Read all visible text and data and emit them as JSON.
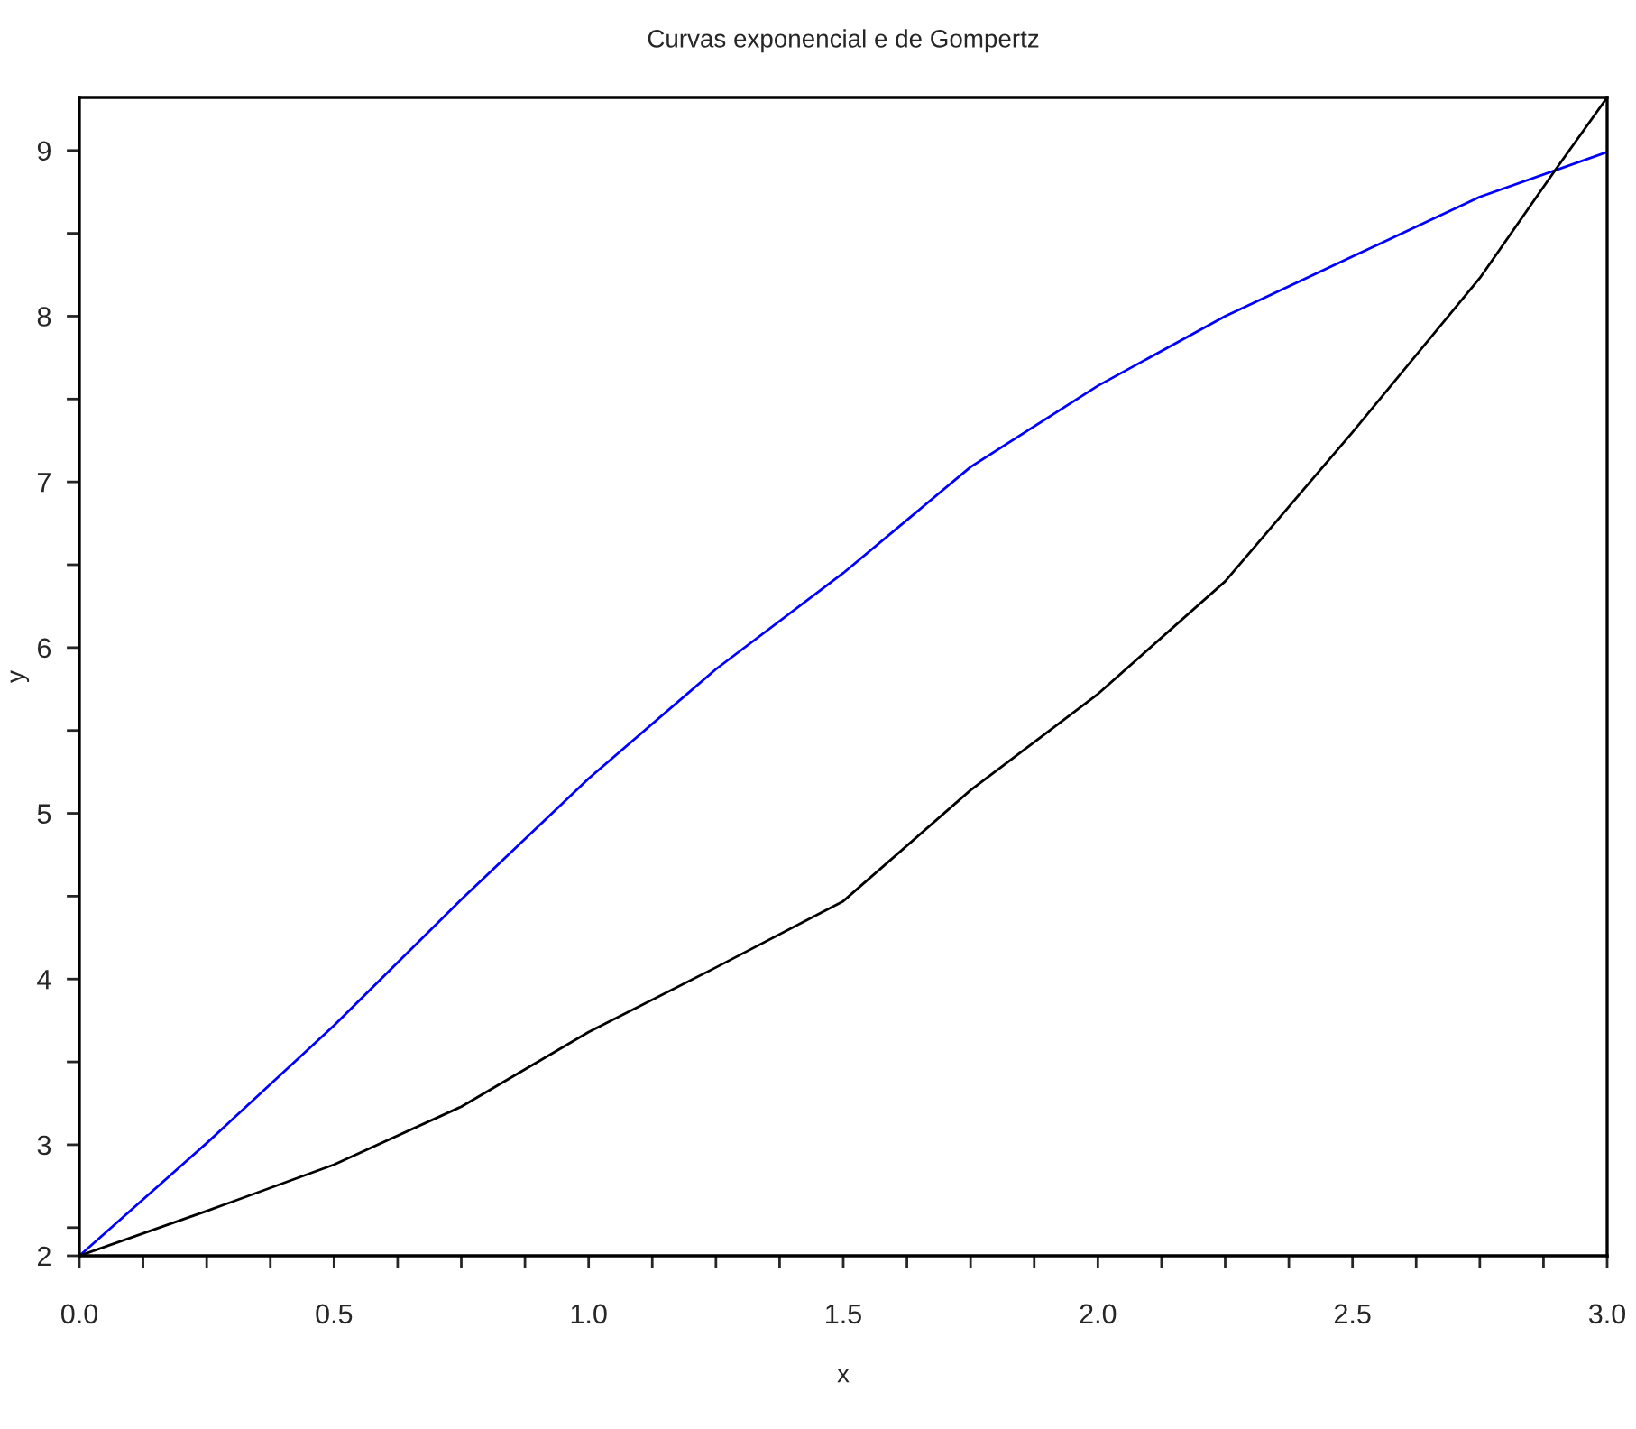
{
  "chart_data": {
    "type": "line",
    "title": "Curvas exponencial e de Gompertz",
    "xlabel": "x",
    "ylabel": "y",
    "xlim": [
      0,
      3
    ],
    "ylim": [
      2.33,
      9.32
    ],
    "xticks": [
      {
        "value": 0,
        "label": "0.0"
      },
      {
        "value": 0.125,
        "label": null
      },
      {
        "value": 0.25,
        "label": null
      },
      {
        "value": 0.375,
        "label": null
      },
      {
        "value": 0.5,
        "label": "0.5"
      },
      {
        "value": 0.625,
        "label": null
      },
      {
        "value": 0.75,
        "label": null
      },
      {
        "value": 0.875,
        "label": null
      },
      {
        "value": 1,
        "label": "1.0"
      },
      {
        "value": 1.125,
        "label": null
      },
      {
        "value": 1.25,
        "label": null
      },
      {
        "value": 1.375,
        "label": null
      },
      {
        "value": 1.5,
        "label": "1.5"
      },
      {
        "value": 1.625,
        "label": null
      },
      {
        "value": 1.75,
        "label": null
      },
      {
        "value": 1.875,
        "label": null
      },
      {
        "value": 2,
        "label": "2.0"
      },
      {
        "value": 2.125,
        "label": null
      },
      {
        "value": 2.25,
        "label": null
      },
      {
        "value": 2.375,
        "label": null
      },
      {
        "value": 2.5,
        "label": "2.5"
      },
      {
        "value": 2.625,
        "label": null
      },
      {
        "value": 2.75,
        "label": null
      },
      {
        "value": 2.875,
        "label": null
      },
      {
        "value": 3,
        "label": "3.0"
      }
    ],
    "yticks": [
      {
        "value": 2.33,
        "label": "2"
      },
      {
        "value": 2.5,
        "label": null
      },
      3,
      {
        "value": 3.5,
        "label": null
      },
      4,
      {
        "value": 4.5,
        "label": null
      },
      5,
      {
        "value": 5.5,
        "label": null
      },
      6,
      {
        "value": 6.5,
        "label": null
      },
      7,
      {
        "value": 7.5,
        "label": null
      },
      8,
      {
        "value": 8.5,
        "label": null
      },
      9
    ],
    "grid": false,
    "series": [
      {
        "color": "#0000ff",
        "x": [
          0,
          0.25,
          0.5,
          0.75,
          1.0,
          1.25,
          1.5,
          1.75,
          2.0,
          2.25,
          2.5,
          2.75,
          3.0
        ],
        "values": [
          2.33,
          3.01,
          3.72,
          4.48,
          5.21,
          5.87,
          6.45,
          7.09,
          7.58,
          8.0,
          8.36,
          8.72,
          8.99
        ]
      },
      {
        "color": "#000000",
        "x": [
          0,
          0.25,
          0.5,
          0.75,
          1.0,
          1.25,
          1.5,
          1.75,
          2.0,
          2.25,
          2.5,
          2.75,
          2.9,
          3.0
        ],
        "values": [
          2.33,
          2.6,
          2.88,
          3.23,
          3.68,
          4.07,
          4.47,
          5.14,
          5.72,
          6.4,
          7.3,
          8.23,
          8.89,
          9.32
        ]
      }
    ]
  }
}
